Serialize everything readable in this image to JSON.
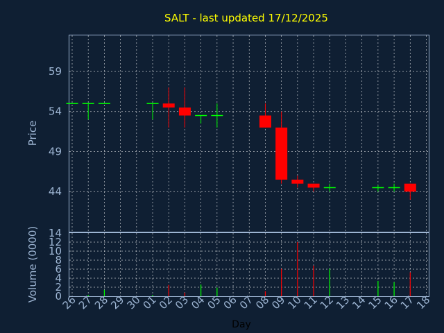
{
  "chart_data": {
    "type": "candlestick",
    "title": "SALT - last updated 17/12/2025",
    "xlabel": "Day",
    "price_panel": {
      "ylabel": "Price",
      "yticks": [
        "59",
        "54",
        "49",
        "44"
      ],
      "ytick_values": [
        59,
        54,
        49,
        44
      ],
      "ylim": [
        39,
        63.5
      ],
      "grid": true
    },
    "volume_panel": {
      "ylabel": "Volume (0000)",
      "yticks": [
        "0",
        "2",
        "4",
        "6",
        "8",
        "10",
        "12",
        "14"
      ],
      "ytick_values": [
        0,
        2,
        4,
        6,
        8,
        10,
        12,
        14
      ],
      "ylim": [
        0,
        14
      ],
      "grid": true
    },
    "x_tick_labels": [
      "26",
      "27",
      "28",
      "29",
      "30",
      "01",
      "02",
      "03",
      "04",
      "05",
      "06",
      "07",
      "08",
      "09",
      "10",
      "11",
      "12",
      "13",
      "14",
      "15",
      "16",
      "17",
      "18"
    ],
    "candles": [
      {
        "day": "26",
        "open": 55.0,
        "high": 55.0,
        "low": 55.0,
        "close": 55.0,
        "volume": 0.0
      },
      {
        "day": "27",
        "open": 55.0,
        "high": 55.0,
        "low": 53.0,
        "close": 55.0,
        "volume": 0.3
      },
      {
        "day": "28",
        "open": 55.0,
        "high": 55.0,
        "low": 55.0,
        "close": 55.0,
        "volume": 1.4
      },
      {
        "day": "01",
        "open": 55.0,
        "high": 55.0,
        "low": 53.0,
        "close": 55.0,
        "volume": 0.3
      },
      {
        "day": "02",
        "open": 55.0,
        "high": 57.0,
        "low": 52.0,
        "close": 54.5,
        "volume": 2.5
      },
      {
        "day": "03",
        "open": 54.5,
        "high": 57.0,
        "low": 52.0,
        "close": 53.5,
        "volume": 0.8
      },
      {
        "day": "04",
        "open": 53.5,
        "high": 53.5,
        "low": 52.5,
        "close": 53.5,
        "volume": 2.6
      },
      {
        "day": "05",
        "open": 53.5,
        "high": 55.0,
        "low": 52.0,
        "close": 53.5,
        "volume": 1.9
      },
      {
        "day": "08",
        "open": 53.5,
        "high": 55.0,
        "low": 52.0,
        "close": 52.0,
        "volume": 1.1
      },
      {
        "day": "09",
        "open": 52.0,
        "high": 54.0,
        "low": 45.0,
        "close": 45.5,
        "volume": 6.1
      },
      {
        "day": "10",
        "open": 45.5,
        "high": 46.0,
        "low": 44.5,
        "close": 45.0,
        "volume": 12.0
      },
      {
        "day": "11",
        "open": 45.0,
        "high": 45.0,
        "low": 44.0,
        "close": 44.5,
        "volume": 6.8
      },
      {
        "day": "12",
        "open": 44.5,
        "high": 45.0,
        "low": 44.0,
        "close": 44.5,
        "volume": 6.1
      },
      {
        "day": "15",
        "open": 44.5,
        "high": 44.8,
        "low": 44.0,
        "close": 44.5,
        "volume": 3.4
      },
      {
        "day": "16",
        "open": 44.5,
        "high": 45.0,
        "low": 44.0,
        "close": 44.5,
        "volume": 3.1
      },
      {
        "day": "17",
        "open": 45.0,
        "high": 45.0,
        "low": 43.0,
        "close": 44.0,
        "volume": 5.3
      }
    ]
  },
  "colors": {
    "background": "#0f1f33",
    "title": "#ffff00",
    "axis_text": "#9db5d3",
    "up": "#00ff00",
    "down": "#ff0000",
    "flat": "#00ff00",
    "grid": "#ffffff"
  }
}
